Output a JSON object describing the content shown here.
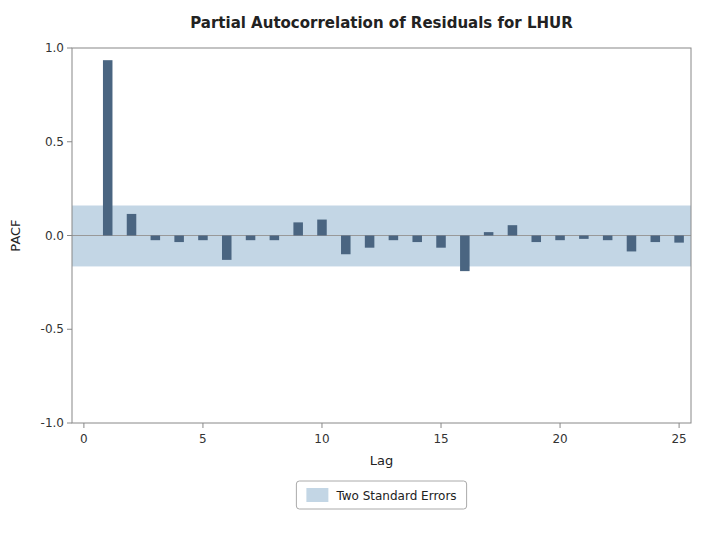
{
  "chart_data": {
    "type": "bar",
    "title": "Partial Autocorrelation of Residuals for LHUR",
    "xlabel": "Lag",
    "ylabel": "PACF",
    "x": [
      1,
      2,
      3,
      4,
      5,
      6,
      7,
      8,
      9,
      10,
      11,
      12,
      13,
      14,
      15,
      16,
      17,
      18,
      19,
      20,
      21,
      22,
      23,
      24,
      25
    ],
    "values": [
      0.935,
      0.115,
      -0.025,
      -0.035,
      -0.025,
      -0.13,
      -0.025,
      -0.025,
      0.07,
      0.085,
      -0.1,
      -0.065,
      -0.025,
      -0.035,
      -0.065,
      -0.19,
      0.018,
      0.055,
      -0.035,
      -0.025,
      -0.018,
      -0.025,
      -0.085,
      -0.035,
      -0.038
    ],
    "color": "#4a6581",
    "xlim": [
      -0.5,
      25.5
    ],
    "ylim": [
      -1.0,
      1.0
    ],
    "xticks": [
      0,
      5,
      10,
      15,
      20,
      25
    ],
    "yticks": [
      {
        "value": -1.0,
        "label": "-1.0"
      },
      -0.5,
      {
        "value": 0.0,
        "label": "0.0"
      },
      0.5,
      {
        "value": 1.0,
        "label": "1.0"
      }
    ],
    "conf_band": {
      "name": "Two Standard Errors",
      "lower": -0.165,
      "upper": 0.16,
      "color": "#b8cfe0"
    },
    "grid": false,
    "legend": "bottom"
  }
}
